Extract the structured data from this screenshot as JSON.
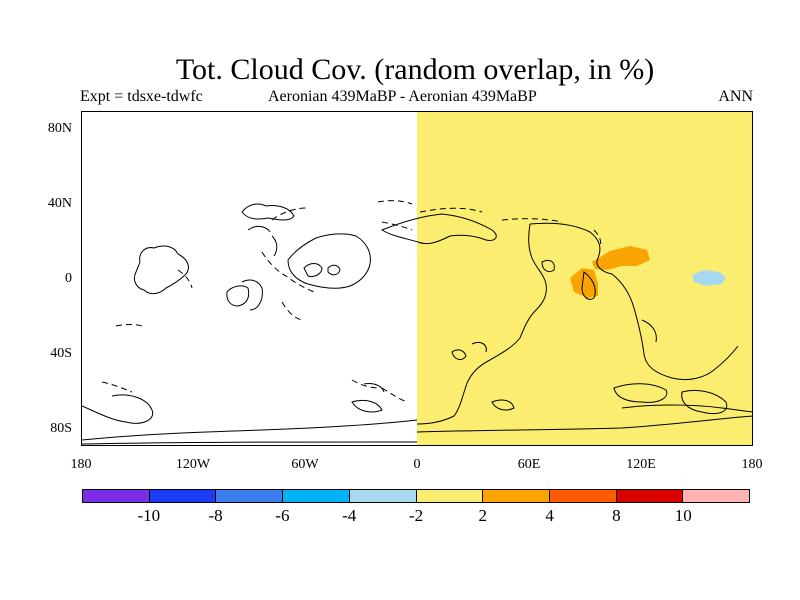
{
  "title": "Tot. Cloud Cov. (random overlap, in %)",
  "subtitle_left": "Expt = tdsxe-tdwfc",
  "subtitle_center": "Aeronian 439MaBP - Aeronian 439MaBP",
  "subtitle_right": "ANN",
  "y_ticks": [
    "80N",
    "40N",
    "0",
    "40S",
    "80S"
  ],
  "x_ticks": [
    "180",
    "120W",
    "60W",
    "0",
    "60E",
    "120E",
    "180"
  ],
  "colorbar": {
    "colors": [
      "#7b2ee8",
      "#1a3df5",
      "#3b7ef0",
      "#00b4f5",
      "#a6d8ef",
      "#fbed70",
      "#f9a400",
      "#ff5a00",
      "#d90000",
      "#ffb3b3"
    ],
    "labels": [
      "-10",
      "-8",
      "-6",
      "-4",
      "-2",
      "2",
      "4",
      "8",
      "10"
    ]
  },
  "colors": {
    "positive_small": "#fbed70",
    "positive_mid": "#f9a400",
    "negative_small": "#a6d8ef"
  }
}
